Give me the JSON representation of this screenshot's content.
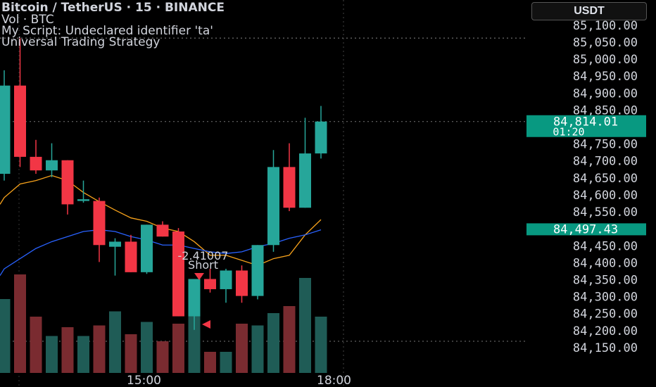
{
  "header": {
    "title": "Bitcoin / TetherUS · 15 · BINANCE",
    "volume_label": "Vol · BTC",
    "script_error": "My Script: Undeclared identifier 'ta'",
    "strategy_name": "Universal Trading Strategy"
  },
  "currency_selector": {
    "label": "USDT"
  },
  "colors": {
    "up": "#26a69a",
    "down": "#f23645",
    "up_volume": "#1f5c56",
    "down_volume": "#7a2b30",
    "ma_fast": "#f7a21b",
    "ma_slow": "#2962ff",
    "current_price_tag": "#089981",
    "background": "#000000"
  },
  "chart_data": {
    "type": "candlestick",
    "symbol": "Bitcoin / TetherUS",
    "interval": "15",
    "exchange": "BINANCE",
    "y_ticks": [
      84150,
      84200,
      84250,
      84300,
      84350,
      84400,
      84450,
      84500,
      84550,
      84600,
      84650,
      84700,
      84750,
      84800,
      84850,
      84900,
      84950,
      85000,
      85050,
      85100
    ],
    "y_tick_labels": [
      "84,150.00",
      "84,200.00",
      "84,250.00",
      "84,300.00",
      "84,350.00",
      "84,400.00",
      "84,450.00",
      "84,500.00",
      "84,550.00",
      "84,600.00",
      "84,650.00",
      "84,700.00",
      "84,750.00",
      "84,800.00",
      "84,850.00",
      "84,900.00",
      "84,950.00",
      "85,000.00",
      "85,050.00",
      "85,100.00"
    ],
    "ylim": [
      84125,
      85110
    ],
    "x_labels": [
      {
        "label": "15:00",
        "index": 9
      },
      {
        "label": "18:00",
        "index": 21
      }
    ],
    "candles": [
      {
        "o": 84660,
        "h": 84965,
        "l": 84640,
        "c": 84920
      },
      {
        "o": 84920,
        "h": 85060,
        "l": 84680,
        "c": 84710
      },
      {
        "o": 84710,
        "h": 84760,
        "l": 84660,
        "c": 84670
      },
      {
        "o": 84670,
        "h": 84750,
        "l": 84650,
        "c": 84700
      },
      {
        "o": 84700,
        "h": 84700,
        "l": 84540,
        "c": 84570
      },
      {
        "o": 84580,
        "h": 84640,
        "l": 84575,
        "c": 84585
      },
      {
        "o": 84580,
        "h": 84590,
        "l": 84400,
        "c": 84450
      },
      {
        "o": 84445,
        "h": 84470,
        "l": 84360,
        "c": 84460
      },
      {
        "o": 84460,
        "h": 84480,
        "l": 84370,
        "c": 84370
      },
      {
        "o": 84370,
        "h": 84510,
        "l": 84365,
        "c": 84510
      },
      {
        "o": 84510,
        "h": 84520,
        "l": 84475,
        "c": 84475
      },
      {
        "o": 84490,
        "h": 84500,
        "l": 84240,
        "c": 84240
      },
      {
        "o": 84240,
        "h": 84350,
        "l": 84200,
        "c": 84350
      },
      {
        "o": 84350,
        "h": 84380,
        "l": 84310,
        "c": 84320
      },
      {
        "o": 84320,
        "h": 84380,
        "l": 84280,
        "c": 84375
      },
      {
        "o": 84375,
        "h": 84390,
        "l": 84280,
        "c": 84300
      },
      {
        "o": 84300,
        "h": 84450,
        "l": 84290,
        "c": 84450
      },
      {
        "o": 84450,
        "h": 84730,
        "l": 84430,
        "c": 84680
      },
      {
        "o": 84680,
        "h": 84750,
        "l": 84550,
        "c": 84560
      },
      {
        "o": 84560,
        "h": 84825,
        "l": 84560,
        "c": 84720
      },
      {
        "o": 84720,
        "h": 84860,
        "l": 84705,
        "c": 84814.01
      }
    ],
    "volume_relative": [
      0.42,
      0.56,
      0.32,
      0.21,
      0.26,
      0.21,
      0.27,
      0.35,
      0.22,
      0.29,
      0.18,
      0.28,
      0.48,
      0.12,
      0.12,
      0.28,
      0.27,
      0.34,
      0.38,
      0.54,
      0.32
    ],
    "series": [
      {
        "name": "ma_fast",
        "values": [
          84590,
          84630,
          84640,
          84655,
          84640,
          84605,
          84578,
          84553,
          84530,
          84520,
          84500,
          84490,
          84460,
          84420,
          84420,
          84405,
          84390,
          84410,
          84420,
          84480,
          84525
        ]
      },
      {
        "name": "ma_slow",
        "values": [
          84380,
          84410,
          84440,
          84460,
          84475,
          84490,
          84495,
          84490,
          84475,
          84465,
          84450,
          84450,
          84440,
          84430,
          84425,
          84430,
          84445,
          84455,
          84470,
          84480,
          84495
        ]
      }
    ],
    "current_price": {
      "value": 84814.01,
      "label": "84,814.01",
      "countdown": "01:20"
    },
    "second_price": {
      "value": 84497.43,
      "label": "84,497.43"
    },
    "signal": {
      "value_label": "-2.41007",
      "side_label": "Short",
      "index": 11
    },
    "grid": false
  }
}
